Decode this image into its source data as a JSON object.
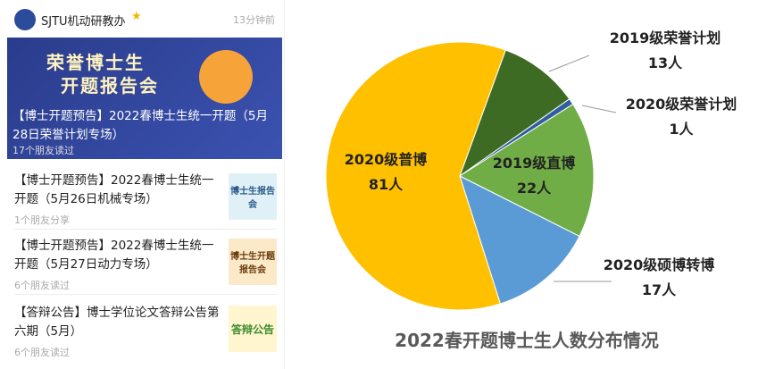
{
  "feed": {
    "account": "SJTU机动研教办",
    "time": "13分钟前",
    "top": {
      "image_text": [
        "荣誉博士生",
        "开题报告会"
      ],
      "title": "【博士开题预告】2022春博士生统一开题（5月28日荣誉计划专场）",
      "meta": "17个朋友读过"
    },
    "items": [
      {
        "title": "【博士开题预告】2022春博士生统一开题（5月26日机械专场）",
        "meta": "1个朋友分享",
        "thumb": "博士生报告会"
      },
      {
        "title": "【博士开题预告】2022春博士生统一开题（5月27日动力专场）",
        "meta": "6个朋友读过",
        "thumb": "博士生开题报告会"
      },
      {
        "title": "【答辩公告】博士学位论文答辩公告第六期（5月）",
        "meta": "6个朋友读过",
        "thumb": "答辩公告"
      }
    ]
  },
  "chart_data": {
    "type": "pie",
    "title": "2022春开题博士生人数分布情况",
    "categories": [
      "2019级荣誉计划",
      "2020级荣誉计划",
      "2019级直博",
      "2020级硕博转博",
      "2020级普博"
    ],
    "values": [
      13,
      1,
      22,
      17,
      81
    ],
    "value_labels": [
      "13人",
      "1人",
      "22人",
      "17人",
      "81人"
    ],
    "colors": [
      "#3d6b23",
      "#2f5f9e",
      "#70ad47",
      "#5b9bd5",
      "#ffc000"
    ]
  }
}
